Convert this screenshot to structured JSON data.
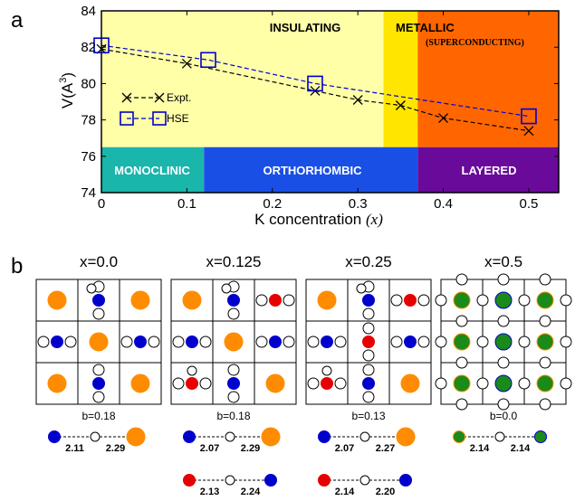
{
  "chart_data": {
    "type": "line",
    "panel_label": "a",
    "xlabel_text": "K concentration ",
    "xlabel_var": "(x)",
    "ylabel_main": "V(A",
    "ylabel_sup": "3",
    "ylabel_close": ")",
    "xlim": [
      0,
      0.535
    ],
    "ylim": [
      74,
      84
    ],
    "xticks": [
      0,
      0.1,
      0.2,
      0.3,
      0.4,
      0.5
    ],
    "xtick_labels": [
      "0",
      "0.1",
      "0.2",
      "0.3",
      "0.4",
      "0.5"
    ],
    "yticks": [
      74,
      76,
      78,
      80,
      82,
      84
    ],
    "ytick_labels": [
      "74",
      "76",
      "78",
      "80",
      "82",
      "84"
    ],
    "regions": [
      {
        "label": "INSULATING",
        "x0": 0,
        "x1": 0.33,
        "y0": 76.5,
        "y1": 84,
        "color": "#ffffa8",
        "text_color": "#000000"
      },
      {
        "label": "METALLIC",
        "x0": 0.33,
        "x1": 0.37,
        "y0": 76.5,
        "y1": 84,
        "color": "#ffe600",
        "text_color": "#000000"
      },
      {
        "label": "(SUPERCONDUCTING)",
        "x0": 0.37,
        "x1": 0.535,
        "y0": 76.5,
        "y1": 84,
        "color": "#ff6600",
        "text_color": "#000000"
      },
      {
        "label": "MONOCLINIC",
        "x0": 0,
        "x1": 0.12,
        "y0": 74,
        "y1": 76.5,
        "color": "#1ab5ab",
        "text_color": "#ffffff"
      },
      {
        "label": "ORTHORHOMBIC",
        "x0": 0.12,
        "x1": 0.37,
        "y0": 74,
        "y1": 76.5,
        "color": "#1a4fe6",
        "text_color": "#ffffff"
      },
      {
        "label": "LAYERED",
        "x0": 0.37,
        "x1": 0.535,
        "y0": 74,
        "y1": 76.5,
        "color": "#6a0a9a",
        "text_color": "#ffffff"
      }
    ],
    "series": [
      {
        "name": "Expt.",
        "marker": "x",
        "color": "#000000",
        "x": [
          0,
          0.1,
          0.25,
          0.3,
          0.35,
          0.4,
          0.5
        ],
        "y": [
          81.9,
          81.1,
          79.6,
          79.1,
          78.8,
          78.1,
          77.4
        ]
      },
      {
        "name": "HSE",
        "marker": "square",
        "color": "#0000cc",
        "x": [
          0,
          0.125,
          0.25,
          0.5
        ],
        "y": [
          82.1,
          81.3,
          80.0,
          78.2
        ]
      }
    ],
    "legend_position": "left"
  },
  "panel_b": {
    "panel_label": "b",
    "titles": [
      "x=0.0",
      "x=0.125",
      "x=0.25",
      "x=0.5"
    ],
    "b_values": [
      "b=0.18",
      "b=0.18",
      "b=0.13",
      "b=0.0"
    ],
    "bond_rows": [
      [
        {
          "left": "2.11",
          "right": "2.29",
          "left_color": "#0000cc",
          "right_color": "#ff8c00"
        }
      ],
      [
        {
          "left": "2.07",
          "right": "2.29",
          "left_color": "#0000cc",
          "right_color": "#ff8c00"
        },
        {
          "left": "2.13",
          "right": "2.24",
          "left_color": "#e60000",
          "right_color": "#0000cc"
        }
      ],
      [
        {
          "left": "2.07",
          "right": "2.27",
          "left_color": "#0000cc",
          "right_color": "#ff8c00"
        },
        {
          "left": "2.14",
          "right": "2.20",
          "left_color": "#e60000",
          "right_color": "#0000cc"
        }
      ],
      [
        {
          "left": "2.14",
          "right": "2.14",
          "left_color": "#1a8a1a",
          "right_color": "#1a8a1a"
        }
      ]
    ]
  }
}
